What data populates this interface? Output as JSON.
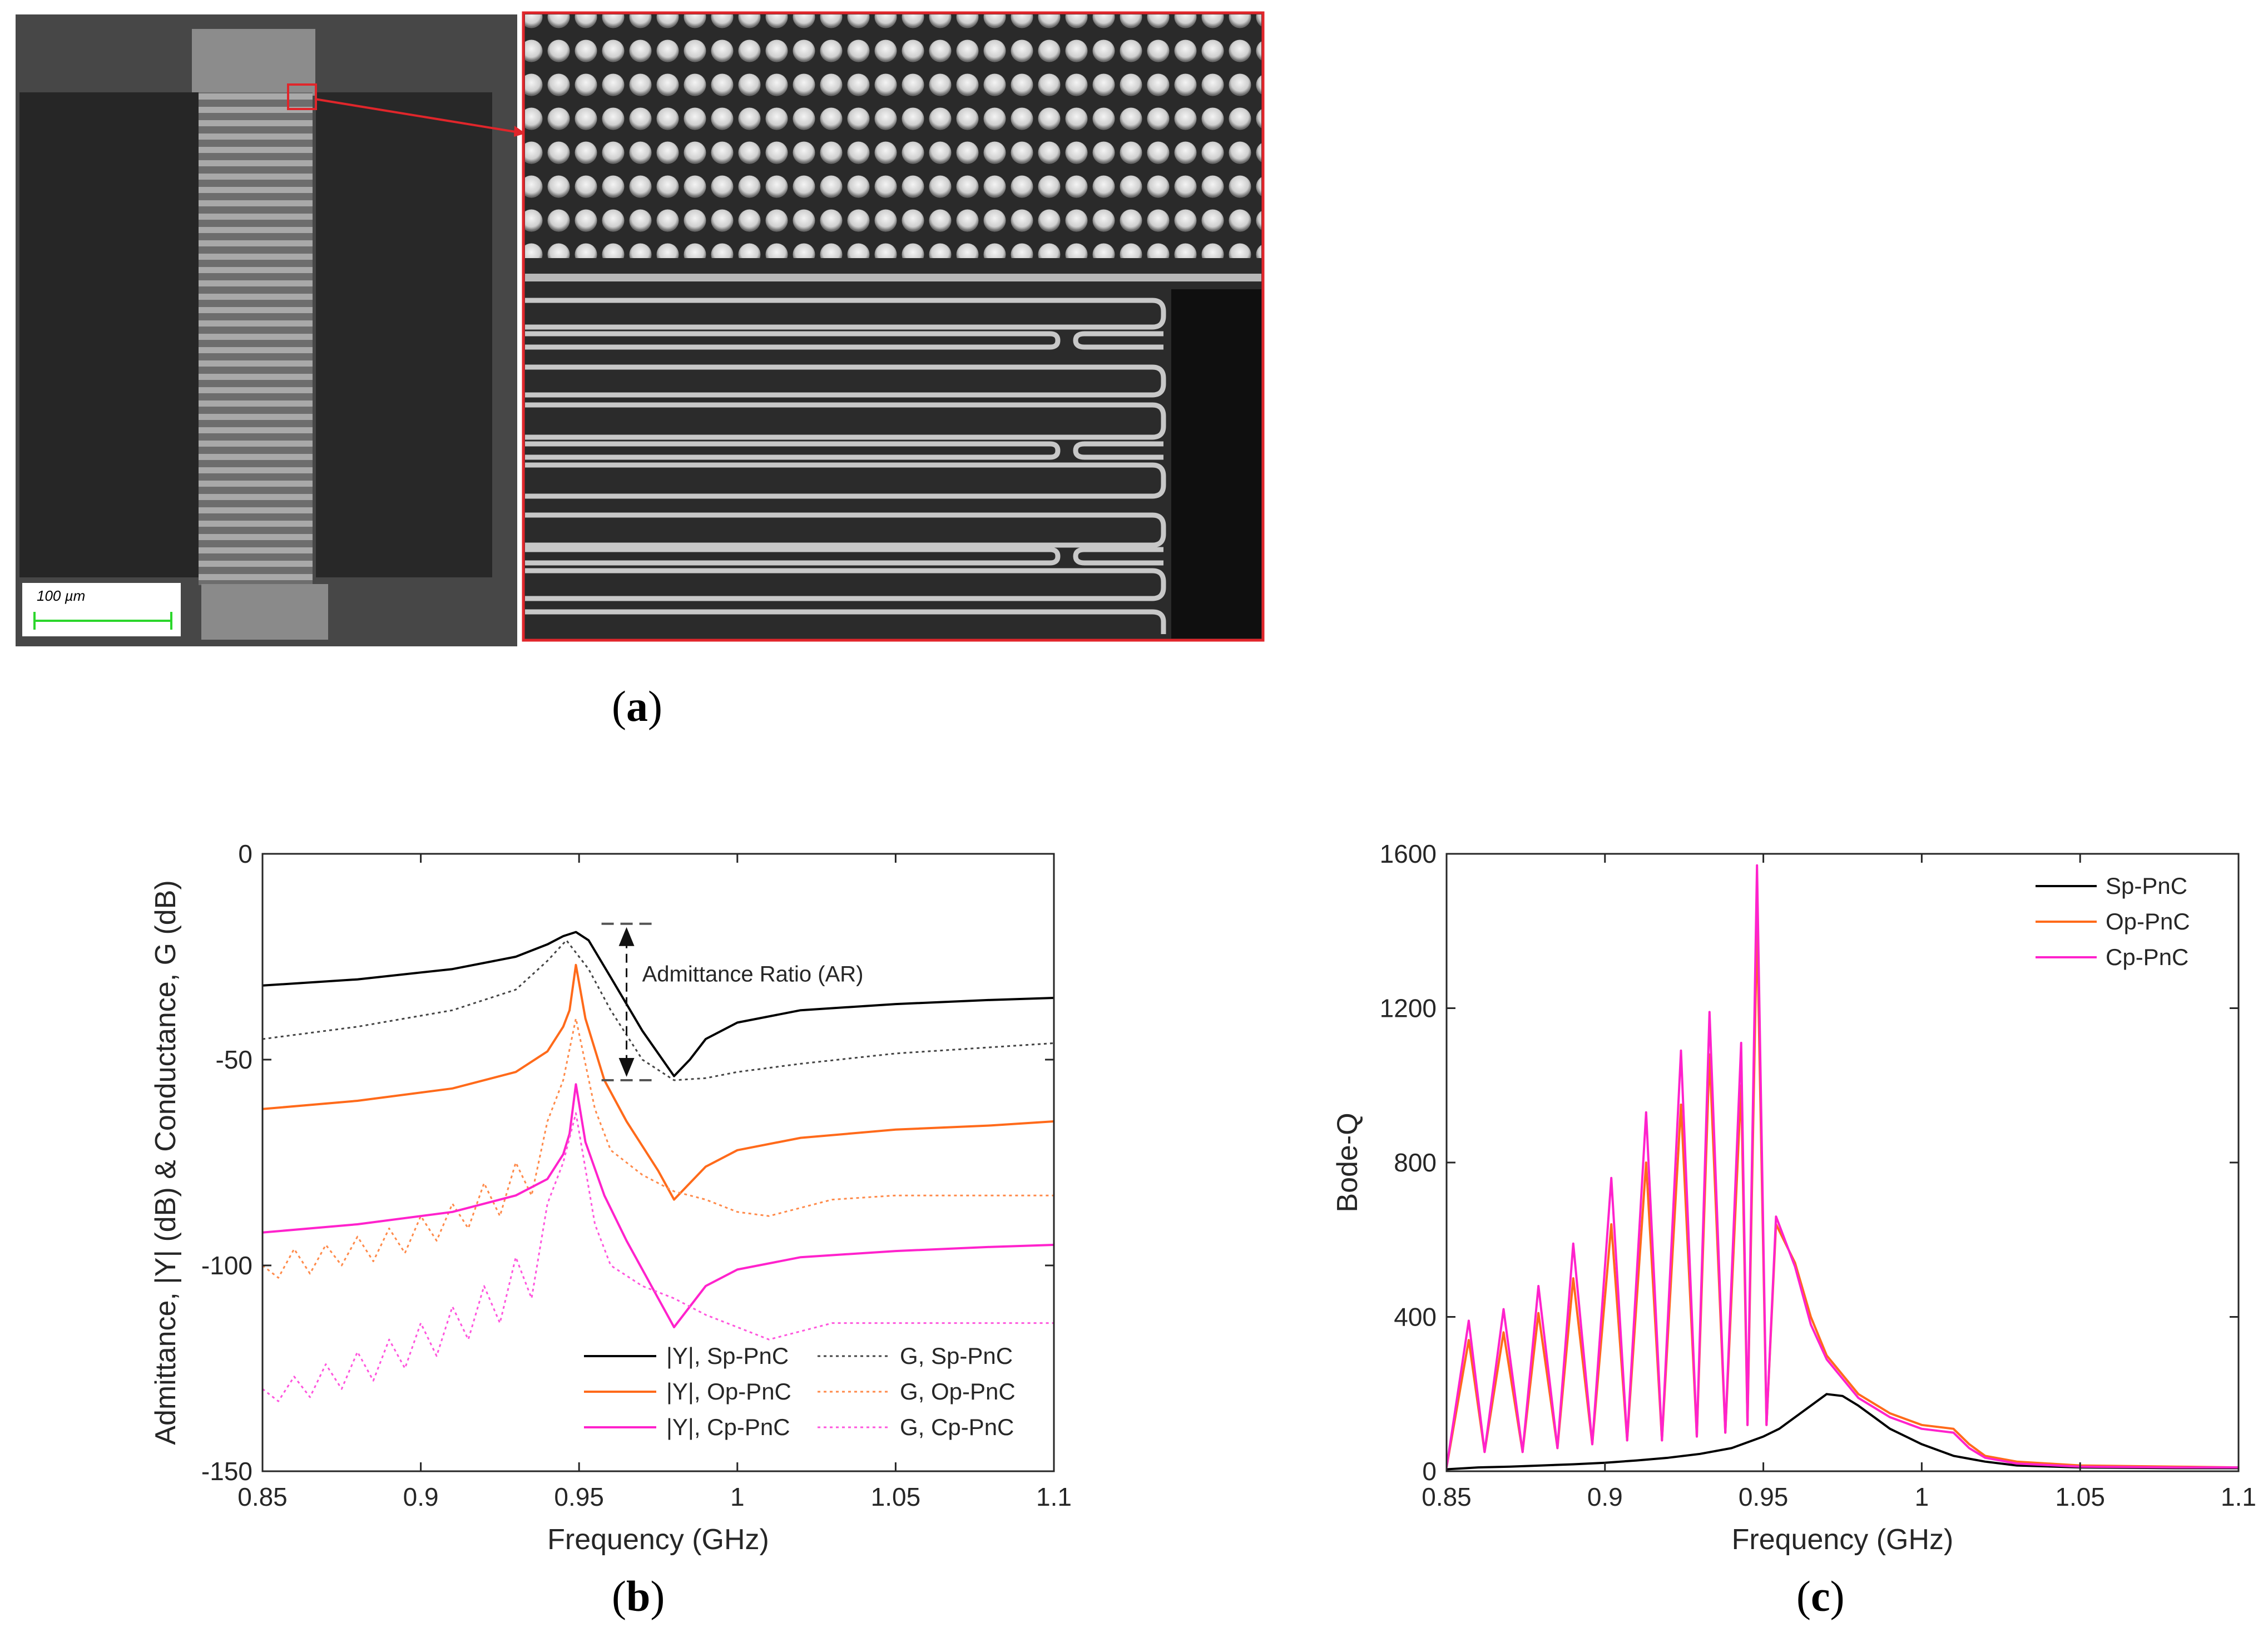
{
  "panels": {
    "a": {
      "letter": "a",
      "scale_bar_label": "100 µm"
    },
    "b": {
      "letter": "b"
    },
    "c": {
      "letter": "c"
    }
  },
  "chart_data": [
    {
      "id": "b",
      "type": "line",
      "xlabel": "Frequency (GHz)",
      "ylabel": "Admittance, |Y| (dB) & Conductance, G (dB)",
      "xlim": [
        0.85,
        1.1
      ],
      "ylim": [
        -150,
        0
      ],
      "xticks": [
        0.85,
        0.9,
        0.95,
        1,
        1.05,
        1.1
      ],
      "xtick_labels": [
        "0.85",
        "0.9",
        "0.95",
        "1",
        "1.05",
        "1.1"
      ],
      "yticks": [
        0,
        -50,
        -100,
        -150
      ],
      "ytick_labels": [
        "0",
        "-50",
        "-100",
        "-150"
      ],
      "grid": false,
      "legend_position": "bottom-right",
      "annotation": "Admittance Ratio (AR)",
      "series": [
        {
          "name": "|Y|, Sp-PnC",
          "color": "#000000",
          "style": "solid",
          "x": [
            0.85,
            0.88,
            0.91,
            0.93,
            0.94,
            0.945,
            0.949,
            0.953,
            0.96,
            0.97,
            0.98,
            0.985,
            0.99,
            1.0,
            1.02,
            1.05,
            1.08,
            1.1
          ],
          "y": [
            -32,
            -30.5,
            -28,
            -25,
            -22,
            -20,
            -19,
            -21,
            -30,
            -43,
            -54,
            -50,
            -45,
            -41,
            -38,
            -36.5,
            -35.5,
            -35
          ]
        },
        {
          "name": "G, Sp-PnC",
          "color": "#444444",
          "style": "dotted",
          "x": [
            0.85,
            0.88,
            0.91,
            0.93,
            0.94,
            0.946,
            0.953,
            0.96,
            0.97,
            0.98,
            0.99,
            1.0,
            1.02,
            1.05,
            1.08,
            1.1
          ],
          "y": [
            -45,
            -42,
            -38,
            -33,
            -26,
            -21,
            -28,
            -38,
            -50,
            -55,
            -54.5,
            -53,
            -51,
            -48.5,
            -47,
            -46
          ]
        },
        {
          "name": "|Y|, Op-PnC",
          "color": "#ff6a1a",
          "style": "solid",
          "x": [
            0.85,
            0.88,
            0.91,
            0.93,
            0.94,
            0.945,
            0.947,
            0.949,
            0.952,
            0.958,
            0.965,
            0.975,
            0.98,
            0.985,
            0.99,
            1.0,
            1.02,
            1.05,
            1.08,
            1.1
          ],
          "y": [
            -62,
            -60,
            -57,
            -53,
            -48,
            -42,
            -38,
            -27,
            -40,
            -55,
            -65,
            -77,
            -84,
            -80,
            -76,
            -72,
            -69,
            -67,
            -66,
            -65
          ]
        },
        {
          "name": "G, Op-PnC",
          "color": "#ff8a4a",
          "style": "dotted",
          "x": [
            0.85,
            0.855,
            0.86,
            0.865,
            0.87,
            0.875,
            0.88,
            0.885,
            0.89,
            0.895,
            0.9,
            0.905,
            0.91,
            0.915,
            0.92,
            0.925,
            0.93,
            0.935,
            0.94,
            0.945,
            0.949,
            0.955,
            0.96,
            0.97,
            0.98,
            0.99,
            1.0,
            1.01,
            1.02,
            1.03,
            1.05,
            1.08,
            1.1
          ],
          "y": [
            -100,
            -103,
            -96,
            -102,
            -95,
            -100,
            -93,
            -99,
            -91,
            -97,
            -88,
            -94,
            -85,
            -91,
            -80,
            -88,
            -75,
            -83,
            -65,
            -55,
            -40,
            -62,
            -72,
            -78,
            -82,
            -84,
            -87,
            -88,
            -86,
            -84,
            -83,
            -83,
            -83
          ]
        },
        {
          "name": "|Y|, Cp-PnC",
          "color": "#ff22cc",
          "style": "solid",
          "x": [
            0.85,
            0.88,
            0.91,
            0.93,
            0.94,
            0.945,
            0.947,
            0.949,
            0.952,
            0.958,
            0.965,
            0.975,
            0.98,
            0.985,
            0.99,
            1.0,
            1.02,
            1.05,
            1.08,
            1.1
          ],
          "y": [
            -92,
            -90,
            -87,
            -83,
            -79,
            -73,
            -68,
            -56,
            -70,
            -83,
            -94,
            -108,
            -115,
            -110,
            -105,
            -101,
            -98,
            -96.5,
            -95.5,
            -95
          ]
        },
        {
          "name": "G, Cp-PnC",
          "color": "#ff55dd",
          "style": "dotted",
          "x": [
            0.85,
            0.855,
            0.86,
            0.865,
            0.87,
            0.875,
            0.88,
            0.885,
            0.89,
            0.895,
            0.9,
            0.905,
            0.91,
            0.915,
            0.92,
            0.925,
            0.93,
            0.935,
            0.94,
            0.945,
            0.949,
            0.955,
            0.96,
            0.97,
            0.98,
            0.99,
            1.0,
            1.01,
            1.02,
            1.03,
            1.05,
            1.08,
            1.1
          ],
          "y": [
            -130,
            -133,
            -127,
            -132,
            -124,
            -130,
            -121,
            -128,
            -118,
            -125,
            -114,
            -122,
            -110,
            -118,
            -105,
            -114,
            -98,
            -108,
            -85,
            -75,
            -63,
            -90,
            -100,
            -105,
            -108,
            -112,
            -115,
            -118,
            -116,
            -114,
            -114,
            -114,
            -114
          ]
        }
      ]
    },
    {
      "id": "c",
      "type": "line",
      "xlabel": "Frequency (GHz)",
      "ylabel": "Bode-Q",
      "xlim": [
        0.85,
        1.1
      ],
      "ylim": [
        0,
        1600
      ],
      "xticks": [
        0.85,
        0.9,
        0.95,
        1,
        1.05,
        1.1
      ],
      "xtick_labels": [
        "0.85",
        "0.9",
        "0.95",
        "1",
        "1.05",
        "1.1"
      ],
      "yticks": [
        0,
        400,
        800,
        1200,
        1600
      ],
      "ytick_labels": [
        "0",
        "400",
        "800",
        "1200",
        "1600"
      ],
      "grid": false,
      "legend_position": "top-right",
      "series": [
        {
          "name": "Sp-PnC",
          "color": "#000000",
          "style": "solid",
          "x": [
            0.85,
            0.86,
            0.87,
            0.88,
            0.89,
            0.9,
            0.91,
            0.92,
            0.93,
            0.94,
            0.945,
            0.95,
            0.955,
            0.96,
            0.965,
            0.97,
            0.975,
            0.98,
            0.985,
            0.99,
            1.0,
            1.01,
            1.02,
            1.03,
            1.05,
            1.08,
            1.1
          ],
          "y": [
            5,
            10,
            12,
            15,
            18,
            22,
            28,
            35,
            45,
            60,
            75,
            90,
            110,
            140,
            170,
            200,
            195,
            170,
            140,
            110,
            70,
            40,
            25,
            15,
            10,
            8,
            8
          ]
        },
        {
          "name": "Op-PnC",
          "color": "#ff6a1a",
          "style": "solid",
          "x": [
            0.85,
            0.857,
            0.862,
            0.868,
            0.874,
            0.879,
            0.885,
            0.89,
            0.896,
            0.902,
            0.907,
            0.913,
            0.918,
            0.924,
            0.929,
            0.933,
            0.938,
            0.943,
            0.945,
            0.948,
            0.951,
            0.954,
            0.96,
            0.965,
            0.97,
            0.975,
            0.98,
            0.99,
            1.0,
            1.01,
            1.015,
            1.02,
            1.03,
            1.05,
            1.08,
            1.1
          ],
          "y": [
            10,
            340,
            50,
            360,
            50,
            410,
            60,
            500,
            70,
            640,
            80,
            800,
            80,
            950,
            90,
            1080,
            100,
            1000,
            120,
            1420,
            120,
            640,
            540,
            400,
            300,
            250,
            200,
            150,
            120,
            110,
            70,
            40,
            25,
            15,
            12,
            10
          ]
        },
        {
          "name": "Cp-PnC",
          "color": "#ff22cc",
          "style": "solid",
          "x": [
            0.85,
            0.857,
            0.862,
            0.868,
            0.874,
            0.879,
            0.885,
            0.89,
            0.896,
            0.902,
            0.907,
            0.913,
            0.918,
            0.924,
            0.929,
            0.933,
            0.938,
            0.943,
            0.945,
            0.948,
            0.951,
            0.954,
            0.96,
            0.965,
            0.97,
            0.975,
            0.98,
            0.99,
            1.0,
            1.01,
            1.015,
            1.02,
            1.03,
            1.05,
            1.08,
            1.1
          ],
          "y": [
            10,
            390,
            50,
            420,
            50,
            480,
            60,
            590,
            70,
            760,
            80,
            930,
            80,
            1090,
            90,
            1190,
            100,
            1110,
            120,
            1570,
            120,
            660,
            530,
            380,
            290,
            240,
            190,
            140,
            110,
            100,
            60,
            35,
            20,
            12,
            10,
            10
          ]
        }
      ]
    }
  ]
}
